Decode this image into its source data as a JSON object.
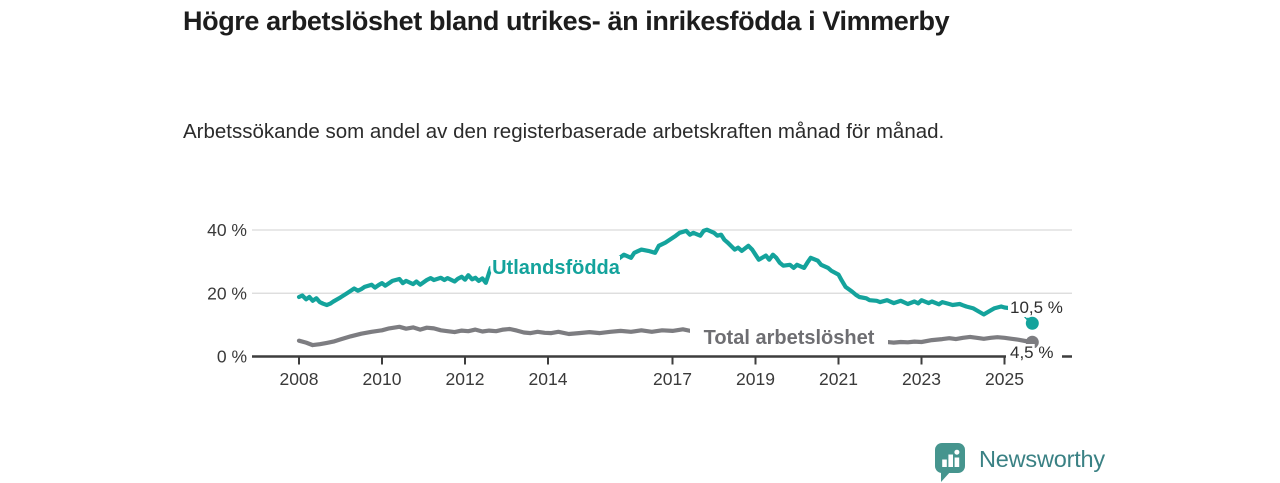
{
  "chart_data": {
    "type": "line",
    "title": "Högre arbetslöshet bland utrikes- än inrikesfödda i Vimmerby",
    "subtitle": "Arbetssökande som andel av den registerbaserade arbetskraften månad för månad.",
    "xlabel": "",
    "ylabel": "",
    "x_range": [
      2008,
      2025.75
    ],
    "ylim": [
      0,
      42
    ],
    "grid": "horizontal-only",
    "legend": "inline-labels-on-lines",
    "axis_color": "#3d3d3d",
    "grid_color": "#d9d9d9",
    "tick_label_color": "#3a3a3a",
    "end_label_color": "#2e2e2e",
    "y_ticks": [
      {
        "value": 0,
        "label": "0 %"
      },
      {
        "value": 20,
        "label": "20 %"
      },
      {
        "value": 40,
        "label": "40 %"
      }
    ],
    "x_ticks": [
      {
        "value": 2008,
        "label": "2008"
      },
      {
        "value": 2010,
        "label": "2010"
      },
      {
        "value": 2012,
        "label": "2012"
      },
      {
        "value": 2014,
        "label": "2014"
      },
      {
        "value": 2017,
        "label": "2017"
      },
      {
        "value": 2019,
        "label": "2019"
      },
      {
        "value": 2021,
        "label": "2021"
      },
      {
        "value": 2023,
        "label": "2023"
      },
      {
        "value": 2025,
        "label": "2025"
      }
    ],
    "series": [
      {
        "name": "Utlandsfödda",
        "color": "#14a39c",
        "label_color": "#14a39c",
        "end_value": 10.5,
        "end_label": "10,5 %",
        "points": [
          [
            2008.0,
            18.8
          ],
          [
            2008.08,
            19.3
          ],
          [
            2008.17,
            18.1
          ],
          [
            2008.25,
            18.8
          ],
          [
            2008.33,
            17.6
          ],
          [
            2008.42,
            18.4
          ],
          [
            2008.5,
            17.2
          ],
          [
            2008.58,
            16.7
          ],
          [
            2008.67,
            16.3
          ],
          [
            2008.75,
            16.7
          ],
          [
            2008.83,
            17.4
          ],
          [
            2008.92,
            18.1
          ],
          [
            2009.0,
            18.7
          ],
          [
            2009.17,
            20.1
          ],
          [
            2009.33,
            21.5
          ],
          [
            2009.42,
            20.8
          ],
          [
            2009.5,
            21.3
          ],
          [
            2009.58,
            22.0
          ],
          [
            2009.75,
            22.7
          ],
          [
            2009.83,
            21.8
          ],
          [
            2009.92,
            22.6
          ],
          [
            2010.0,
            23.2
          ],
          [
            2010.08,
            22.4
          ],
          [
            2010.17,
            23.2
          ],
          [
            2010.25,
            23.9
          ],
          [
            2010.42,
            24.5
          ],
          [
            2010.5,
            23.2
          ],
          [
            2010.58,
            23.9
          ],
          [
            2010.75,
            22.9
          ],
          [
            2010.83,
            23.7
          ],
          [
            2010.92,
            22.7
          ],
          [
            2011.08,
            24.2
          ],
          [
            2011.17,
            24.8
          ],
          [
            2011.25,
            24.2
          ],
          [
            2011.42,
            24.9
          ],
          [
            2011.5,
            24.2
          ],
          [
            2011.58,
            24.8
          ],
          [
            2011.75,
            23.7
          ],
          [
            2011.83,
            24.6
          ],
          [
            2011.92,
            25.2
          ],
          [
            2012.0,
            24.3
          ],
          [
            2012.08,
            25.7
          ],
          [
            2012.17,
            24.4
          ],
          [
            2012.25,
            24.9
          ],
          [
            2012.33,
            23.9
          ],
          [
            2012.42,
            24.7
          ],
          [
            2012.5,
            23.3
          ],
          [
            2012.54,
            24.8
          ],
          [
            2012.58,
            26.5
          ],
          [
            2012.62,
            28.0
          ],
          [
            2012.75,
            27.5
          ],
          [
            2012.83,
            28.0
          ],
          [
            2013.0,
            27.4
          ],
          [
            2013.25,
            26.4
          ],
          [
            2013.5,
            27.2
          ],
          [
            2013.75,
            26.2
          ],
          [
            2014.0,
            26.8
          ],
          [
            2014.25,
            25.9
          ],
          [
            2014.5,
            26.6
          ],
          [
            2014.75,
            26.1
          ],
          [
            2015.0,
            27.0
          ],
          [
            2015.25,
            27.8
          ],
          [
            2015.5,
            28.8
          ],
          [
            2015.67,
            30.6
          ],
          [
            2015.83,
            32.2
          ],
          [
            2016.0,
            31.2
          ],
          [
            2016.08,
            32.8
          ],
          [
            2016.25,
            33.8
          ],
          [
            2016.42,
            33.4
          ],
          [
            2016.58,
            32.8
          ],
          [
            2016.67,
            35.0
          ],
          [
            2016.83,
            36.0
          ],
          [
            2017.08,
            38.2
          ],
          [
            2017.17,
            39.1
          ],
          [
            2017.33,
            39.7
          ],
          [
            2017.42,
            38.5
          ],
          [
            2017.5,
            39.1
          ],
          [
            2017.67,
            38.2
          ],
          [
            2017.75,
            39.7
          ],
          [
            2017.83,
            40.1
          ],
          [
            2018.0,
            39.1
          ],
          [
            2018.08,
            38.2
          ],
          [
            2018.17,
            38.5
          ],
          [
            2018.25,
            36.9
          ],
          [
            2018.33,
            36.0
          ],
          [
            2018.5,
            33.8
          ],
          [
            2018.58,
            34.4
          ],
          [
            2018.67,
            33.4
          ],
          [
            2018.83,
            35.0
          ],
          [
            2018.92,
            33.8
          ],
          [
            2019.0,
            32.2
          ],
          [
            2019.08,
            30.6
          ],
          [
            2019.25,
            31.9
          ],
          [
            2019.33,
            30.6
          ],
          [
            2019.42,
            32.2
          ],
          [
            2019.5,
            31.2
          ],
          [
            2019.58,
            29.7
          ],
          [
            2019.67,
            28.7
          ],
          [
            2019.83,
            29.0
          ],
          [
            2019.92,
            28.0
          ],
          [
            2020.0,
            29.0
          ],
          [
            2020.17,
            28.0
          ],
          [
            2020.25,
            29.7
          ],
          [
            2020.33,
            31.2
          ],
          [
            2020.5,
            30.3
          ],
          [
            2020.58,
            29.0
          ],
          [
            2020.75,
            28.0
          ],
          [
            2020.83,
            27.1
          ],
          [
            2021.0,
            25.9
          ],
          [
            2021.08,
            24.0
          ],
          [
            2021.17,
            22.0
          ],
          [
            2021.33,
            20.5
          ],
          [
            2021.42,
            19.5
          ],
          [
            2021.5,
            18.8
          ],
          [
            2021.67,
            18.4
          ],
          [
            2021.75,
            17.8
          ],
          [
            2021.92,
            17.6
          ],
          [
            2022.0,
            17.2
          ],
          [
            2022.17,
            17.8
          ],
          [
            2022.33,
            16.9
          ],
          [
            2022.5,
            17.6
          ],
          [
            2022.67,
            16.6
          ],
          [
            2022.83,
            17.4
          ],
          [
            2022.92,
            16.8
          ],
          [
            2023.0,
            17.8
          ],
          [
            2023.17,
            16.9
          ],
          [
            2023.25,
            17.4
          ],
          [
            2023.42,
            16.5
          ],
          [
            2023.5,
            17.2
          ],
          [
            2023.67,
            16.6
          ],
          [
            2023.75,
            16.3
          ],
          [
            2023.92,
            16.6
          ],
          [
            2024.0,
            16.2
          ],
          [
            2024.08,
            15.8
          ],
          [
            2024.25,
            15.2
          ],
          [
            2024.42,
            13.9
          ],
          [
            2024.5,
            13.3
          ],
          [
            2024.67,
            14.6
          ],
          [
            2024.75,
            15.2
          ],
          [
            2024.92,
            15.8
          ],
          [
            2025.0,
            15.5
          ],
          [
            2025.17,
            15.2
          ],
          [
            2025.33,
            14.6
          ],
          [
            2025.5,
            13.0
          ],
          [
            2025.67,
            10.5
          ]
        ]
      },
      {
        "name": "Total arbetslöshet",
        "color": "#7d7d81",
        "label_color": "#6e6e72",
        "end_value": 4.5,
        "end_label": "4,5 %",
        "points": [
          [
            2008.0,
            5.0
          ],
          [
            2008.17,
            4.4
          ],
          [
            2008.33,
            3.6
          ],
          [
            2008.5,
            3.9
          ],
          [
            2008.67,
            4.3
          ],
          [
            2008.83,
            4.7
          ],
          [
            2009.0,
            5.4
          ],
          [
            2009.25,
            6.4
          ],
          [
            2009.5,
            7.2
          ],
          [
            2009.75,
            7.8
          ],
          [
            2010.0,
            8.3
          ],
          [
            2010.17,
            8.9
          ],
          [
            2010.42,
            9.4
          ],
          [
            2010.58,
            8.8
          ],
          [
            2010.75,
            9.2
          ],
          [
            2010.92,
            8.5
          ],
          [
            2011.08,
            9.1
          ],
          [
            2011.25,
            8.9
          ],
          [
            2011.42,
            8.3
          ],
          [
            2011.58,
            8.0
          ],
          [
            2011.75,
            7.7
          ],
          [
            2011.92,
            8.2
          ],
          [
            2012.08,
            8.0
          ],
          [
            2012.25,
            8.5
          ],
          [
            2012.42,
            7.9
          ],
          [
            2012.58,
            8.2
          ],
          [
            2012.75,
            8.0
          ],
          [
            2012.92,
            8.5
          ],
          [
            2013.08,
            8.7
          ],
          [
            2013.25,
            8.2
          ],
          [
            2013.42,
            7.6
          ],
          [
            2013.58,
            7.4
          ],
          [
            2013.75,
            7.8
          ],
          [
            2013.92,
            7.5
          ],
          [
            2014.08,
            7.4
          ],
          [
            2014.25,
            7.8
          ],
          [
            2014.5,
            7.1
          ],
          [
            2014.75,
            7.4
          ],
          [
            2015.0,
            7.7
          ],
          [
            2015.25,
            7.4
          ],
          [
            2015.5,
            7.8
          ],
          [
            2015.75,
            8.1
          ],
          [
            2016.0,
            7.8
          ],
          [
            2016.25,
            8.3
          ],
          [
            2016.5,
            7.8
          ],
          [
            2016.75,
            8.3
          ],
          [
            2017.0,
            8.1
          ],
          [
            2017.25,
            8.6
          ],
          [
            2017.5,
            7.9
          ],
          [
            2017.75,
            7.5
          ],
          [
            2018.0,
            7.3
          ],
          [
            2018.25,
            7.0
          ],
          [
            2018.5,
            6.8
          ],
          [
            2018.75,
            6.6
          ],
          [
            2019.0,
            6.5
          ],
          [
            2019.25,
            6.3
          ],
          [
            2019.5,
            6.2
          ],
          [
            2019.75,
            6.3
          ],
          [
            2020.0,
            6.5
          ],
          [
            2020.25,
            7.4
          ],
          [
            2020.5,
            7.2
          ],
          [
            2020.75,
            6.9
          ],
          [
            2021.0,
            6.6
          ],
          [
            2021.25,
            6.2
          ],
          [
            2021.5,
            5.8
          ],
          [
            2021.75,
            5.3
          ],
          [
            2022.0,
            4.9
          ],
          [
            2022.17,
            4.6
          ],
          [
            2022.33,
            4.4
          ],
          [
            2022.5,
            4.6
          ],
          [
            2022.67,
            4.5
          ],
          [
            2022.83,
            4.7
          ],
          [
            2023.0,
            4.6
          ],
          [
            2023.25,
            5.2
          ],
          [
            2023.5,
            5.5
          ],
          [
            2023.67,
            5.8
          ],
          [
            2023.83,
            5.5
          ],
          [
            2024.0,
            5.9
          ],
          [
            2024.17,
            6.2
          ],
          [
            2024.33,
            5.9
          ],
          [
            2024.5,
            5.6
          ],
          [
            2024.67,
            5.9
          ],
          [
            2024.83,
            6.1
          ],
          [
            2025.0,
            5.9
          ],
          [
            2025.17,
            5.6
          ],
          [
            2025.33,
            5.3
          ],
          [
            2025.5,
            4.9
          ],
          [
            2025.67,
            4.5
          ]
        ]
      }
    ]
  },
  "footer": {
    "brand": "Newsworthy",
    "logo_color": "#46958e",
    "brand_text_color": "#3a8184"
  }
}
